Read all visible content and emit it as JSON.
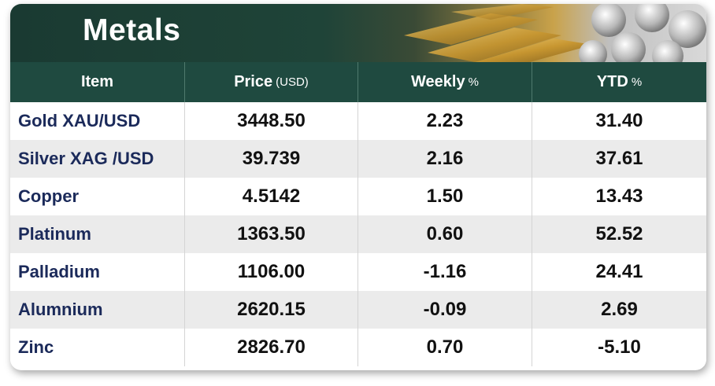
{
  "title": "Metals",
  "header": {
    "item": "Item",
    "price": "Price",
    "price_unit": "(USD)",
    "weekly": "Weekly",
    "weekly_unit": "%",
    "ytd": "YTD",
    "ytd_unit": "%"
  },
  "rows": [
    {
      "name": "Gold XAU/USD",
      "price": "3448.50",
      "weekly": "2.23",
      "ytd": "31.40"
    },
    {
      "name": "Silver XAG /USD",
      "price": "39.739",
      "weekly": "2.16",
      "ytd": "37.61"
    },
    {
      "name": "Copper",
      "price": "4.5142",
      "weekly": "1.50",
      "ytd": "13.43"
    },
    {
      "name": "Platinum",
      "price": "1363.50",
      "weekly": "0.60",
      "ytd": "52.52"
    },
    {
      "name": "Palladium",
      "price": "1106.00",
      "weekly": "-1.16",
      "ytd": "24.41"
    },
    {
      "name": "Alumnium",
      "price": "2620.15",
      "weekly": "-0.09",
      "ytd": "2.69"
    },
    {
      "name": "Zinc",
      "price": "2826.70",
      "weekly": "0.70",
      "ytd": "-5.10"
    }
  ],
  "colors": {
    "banner": "#1a3a32",
    "header": "#1f4a40",
    "name_text": "#1b2a5a",
    "stripe": "#ebebeb"
  },
  "decoration": [
    "gold-bars-image",
    "silver-coins-image"
  ]
}
